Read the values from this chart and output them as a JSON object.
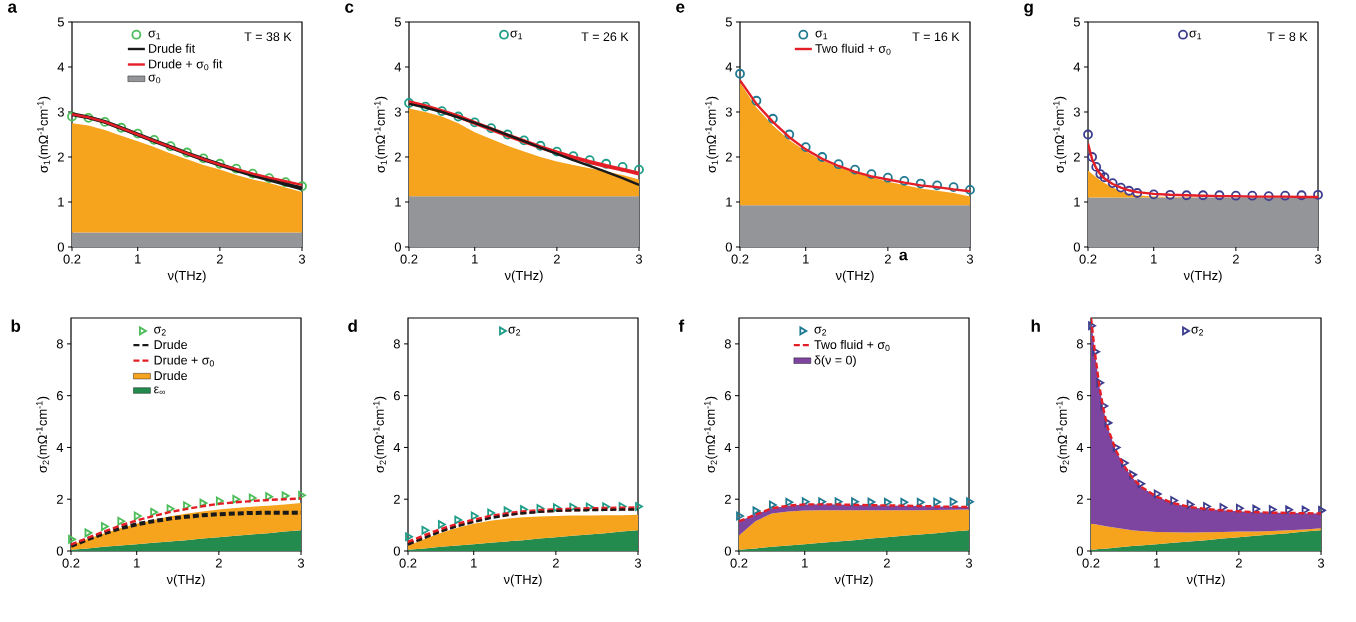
{
  "chart_data": [
    {
      "type": "line",
      "title": "a",
      "xlabel": "ν(THz)",
      "ylabel": "σ$_{1}$(mΩ$^{-1}$cm$^{-1}$)",
      "xlim": [
        0.2,
        3
      ],
      "ylim": [
        0,
        5
      ],
      "xticks": [
        0.2,
        1,
        2,
        3
      ],
      "yticks": [
        0,
        1,
        2,
        3,
        4,
        5
      ],
      "legend": "top",
      "stacked": true,
      "annotations": [
        "T = 38 K"
      ],
      "x": [
        0.2,
        0.4,
        0.6,
        0.8,
        1.0,
        1.2,
        1.4,
        1.6,
        1.8,
        2.0,
        2.2,
        2.4,
        2.6,
        2.8,
        3.0
      ],
      "series": [
        {
          "type": "scatter",
          "marker": "circle",
          "name": "σ$_{1}$",
          "color": "#4dbd5a",
          "values": [
            2.9,
            2.87,
            2.78,
            2.65,
            2.52,
            2.38,
            2.24,
            2.1,
            1.97,
            1.85,
            1.74,
            1.63,
            1.53,
            1.44,
            1.35
          ]
        },
        {
          "type": "line",
          "name": "Drude fit",
          "color": "#1a1a1a",
          "values": [
            2.95,
            2.88,
            2.78,
            2.64,
            2.5,
            2.36,
            2.22,
            2.08,
            1.95,
            1.83,
            1.71,
            1.6,
            1.5,
            1.4,
            1.3
          ]
        },
        {
          "type": "line",
          "name": "Drude + σ$_{0}$ fit",
          "color": "#e41e26",
          "values": [
            2.95,
            2.88,
            2.78,
            2.64,
            2.5,
            2.36,
            2.22,
            2.08,
            1.95,
            1.83,
            1.73,
            1.63,
            1.54,
            1.46,
            1.38
          ]
        },
        {
          "type": "area",
          "name": "σ$_{0}$",
          "color": "#939598",
          "values": [
            0.32,
            0.32,
            0.32,
            0.32,
            0.32,
            0.32,
            0.32,
            0.32,
            0.32,
            0.32,
            0.32,
            0.32,
            0.32,
            0.32,
            0.32
          ]
        },
        {
          "type": "area",
          "color": "#f6a31e",
          "values": [
            2.43,
            2.38,
            2.28,
            2.15,
            2.03,
            1.9,
            1.76,
            1.63,
            1.5,
            1.4,
            1.28,
            1.18,
            1.1,
            1.0,
            0.9
          ]
        }
      ]
    },
    {
      "type": "line",
      "title": "c",
      "xlabel": "ν(THz)",
      "ylabel": "σ$_{1}$(mΩ$^{-1}$cm$^{-1}$)",
      "xlim": [
        0.2,
        3
      ],
      "ylim": [
        0,
        5
      ],
      "xticks": [
        0.2,
        1,
        2,
        3
      ],
      "yticks": [
        0,
        1,
        2,
        3,
        4,
        5
      ],
      "legend": "top",
      "stacked": true,
      "annotations": [
        "T = 26 K"
      ],
      "x": [
        0.2,
        0.4,
        0.6,
        0.8,
        1.0,
        1.2,
        1.4,
        1.6,
        1.8,
        2.0,
        2.2,
        2.4,
        2.6,
        2.8,
        3.0
      ],
      "series": [
        {
          "type": "scatter",
          "marker": "circle",
          "name": "σ$_{1}$",
          "color": "#1e9e88",
          "values": [
            3.2,
            3.12,
            3.02,
            2.9,
            2.77,
            2.64,
            2.5,
            2.37,
            2.25,
            2.12,
            2.02,
            1.93,
            1.85,
            1.78,
            1.72
          ]
        },
        {
          "type": "line",
          "color": "#e41e26",
          "values": [
            3.22,
            3.13,
            3.02,
            2.9,
            2.76,
            2.62,
            2.48,
            2.35,
            2.22,
            2.1,
            1.99,
            1.89,
            1.8,
            1.72,
            1.63
          ]
        },
        {
          "type": "line",
          "color": "#1a1a1a",
          "values": [
            3.18,
            3.1,
            3.0,
            2.88,
            2.76,
            2.63,
            2.49,
            2.35,
            2.21,
            2.07,
            1.93,
            1.8,
            1.67,
            1.53,
            1.38
          ]
        },
        {
          "type": "area",
          "color": "#939598",
          "values": [
            1.13,
            1.13,
            1.13,
            1.13,
            1.13,
            1.13,
            1.13,
            1.13,
            1.13,
            1.13,
            1.13,
            1.13,
            1.13,
            1.13,
            1.13
          ]
        },
        {
          "type": "area",
          "color": "#f6a31e",
          "values": [
            1.95,
            1.87,
            1.77,
            1.62,
            1.42,
            1.27,
            1.12,
            0.99,
            0.87,
            0.77,
            0.69,
            0.62,
            0.55,
            0.47,
            0.37
          ]
        }
      ]
    },
    {
      "type": "line",
      "title": "e",
      "xlabel": "ν(THz)",
      "ylabel": "σ$_{1}$(mΩ$^{-1}$cm$^{-1}$)",
      "xlim": [
        0.2,
        3
      ],
      "ylim": [
        0,
        5
      ],
      "xticks": [
        0.2,
        1,
        2,
        3
      ],
      "yticks": [
        0,
        1,
        2,
        3,
        4,
        5
      ],
      "legend": "top",
      "stacked": true,
      "annotations": [
        "T = 16 K",
        "a"
      ],
      "x": [
        0.2,
        0.4,
        0.6,
        0.8,
        1.0,
        1.2,
        1.4,
        1.6,
        1.8,
        2.0,
        2.2,
        2.4,
        2.6,
        2.8,
        3.0
      ],
      "series": [
        {
          "type": "scatter",
          "marker": "circle",
          "name": "σ$_{1}$",
          "color": "#1f7a92",
          "values": [
            3.85,
            3.25,
            2.85,
            2.5,
            2.22,
            2.0,
            1.84,
            1.72,
            1.62,
            1.54,
            1.47,
            1.41,
            1.37,
            1.33,
            1.27
          ]
        },
        {
          "type": "line",
          "name": "Two fluid + σ$_{0}$",
          "color": "#e41e26",
          "values": [
            3.7,
            3.18,
            2.78,
            2.44,
            2.17,
            1.96,
            1.8,
            1.67,
            1.57,
            1.5,
            1.43,
            1.37,
            1.33,
            1.28,
            1.24
          ]
        },
        {
          "type": "area",
          "color": "#939598",
          "values": [
            0.93,
            0.93,
            0.93,
            0.93,
            0.93,
            0.93,
            0.93,
            0.93,
            0.93,
            0.93,
            0.93,
            0.93,
            0.93,
            0.93,
            0.93
          ]
        },
        {
          "type": "area",
          "color": "#f6a31e",
          "values": [
            2.72,
            2.17,
            1.77,
            1.45,
            1.2,
            0.99,
            0.85,
            0.72,
            0.62,
            0.52,
            0.45,
            0.37,
            0.32,
            0.27,
            0.19
          ]
        }
      ]
    },
    {
      "type": "line",
      "title": "g",
      "xlabel": "ν(THz)",
      "ylabel": "σ$_{1}$(mΩ$^{-1}$cm$^{-1}$)",
      "xlim": [
        0.2,
        3
      ],
      "ylim": [
        0,
        5
      ],
      "xticks": [
        0.2,
        1,
        2,
        3
      ],
      "yticks": [
        0,
        1,
        2,
        3,
        4,
        5
      ],
      "legend": "top",
      "stacked": true,
      "annotations": [
        "T = 8 K"
      ],
      "x": [
        0.2,
        0.25,
        0.3,
        0.35,
        0.4,
        0.5,
        0.6,
        0.7,
        0.8,
        1.0,
        1.2,
        1.4,
        1.6,
        1.8,
        2.0,
        2.2,
        2.4,
        2.6,
        2.8,
        3.0
      ],
      "series": [
        {
          "type": "scatter",
          "marker": "circle",
          "name": "σ$_{1}$",
          "color": "#3d3d8f",
          "values": [
            2.5,
            2.0,
            1.78,
            1.62,
            1.55,
            1.42,
            1.32,
            1.25,
            1.2,
            1.17,
            1.16,
            1.15,
            1.15,
            1.15,
            1.14,
            1.14,
            1.13,
            1.14,
            1.15,
            1.16
          ]
        },
        {
          "type": "line",
          "color": "#e41e26",
          "values": [
            2.3,
            1.95,
            1.75,
            1.62,
            1.52,
            1.4,
            1.32,
            1.26,
            1.22,
            1.18,
            1.16,
            1.15,
            1.14,
            1.13,
            1.13,
            1.12,
            1.12,
            1.12,
            1.11,
            1.11
          ]
        },
        {
          "type": "area",
          "color": "#939598",
          "values": [
            1.1,
            1.1,
            1.1,
            1.1,
            1.1,
            1.1,
            1.1,
            1.1,
            1.1,
            1.1,
            1.1,
            1.1,
            1.1,
            1.1,
            1.1,
            1.1,
            1.1,
            1.1,
            1.1,
            1.1
          ]
        },
        {
          "type": "area",
          "color": "#f6a31e",
          "values": [
            0.6,
            0.52,
            0.45,
            0.38,
            0.32,
            0.22,
            0.14,
            0.08,
            0.05,
            0.02,
            0.01,
            0.01,
            0,
            0,
            0,
            0,
            0,
            0,
            0,
            0
          ]
        }
      ]
    },
    {
      "type": "line",
      "title": "b",
      "xlabel": "ν(THz)",
      "ylabel": "σ$_{2}$(mΩ$^{-1}$cm$^{-1}$)",
      "xlim": [
        0.2,
        3
      ],
      "ylim": [
        0,
        9
      ],
      "xticks": [
        0.2,
        1,
        2,
        3
      ],
      "yticks": [
        0,
        2,
        4,
        6,
        8
      ],
      "legend": "top",
      "stacked": true,
      "x": [
        0.2,
        0.4,
        0.6,
        0.8,
        1.0,
        1.2,
        1.4,
        1.6,
        1.8,
        2.0,
        2.2,
        2.4,
        2.6,
        2.8,
        3.0
      ],
      "series": [
        {
          "type": "scatter",
          "marker": "triangle",
          "name": "σ$_{2}$",
          "color": "#4dbd5a",
          "values": [
            0.45,
            0.7,
            0.95,
            1.15,
            1.35,
            1.5,
            1.63,
            1.75,
            1.85,
            1.93,
            2.0,
            2.05,
            2.1,
            2.13,
            2.15
          ]
        },
        {
          "type": "line",
          "line_style": "dashed",
          "name": "Drude",
          "color": "#1a1a1a",
          "values": [
            0.2,
            0.45,
            0.68,
            0.88,
            1.03,
            1.15,
            1.25,
            1.32,
            1.38,
            1.42,
            1.45,
            1.47,
            1.48,
            1.48,
            1.48
          ]
        },
        {
          "type": "line",
          "line_style": "dashed",
          "name": "Drude + σ$_{0}$",
          "color": "#e41e26",
          "values": [
            0.25,
            0.5,
            0.75,
            0.98,
            1.18,
            1.35,
            1.5,
            1.62,
            1.73,
            1.82,
            1.88,
            1.93,
            1.97,
            2.0,
            2.03
          ]
        },
        {
          "type": "area",
          "name": "ε$_{∞}$",
          "color": "#238b4e",
          "values": [
            0.05,
            0.1,
            0.16,
            0.21,
            0.26,
            0.32,
            0.37,
            0.42,
            0.48,
            0.53,
            0.59,
            0.64,
            0.69,
            0.75,
            0.8
          ]
        },
        {
          "type": "area",
          "name": "Drude",
          "color": "#f6a31e",
          "values": [
            0.17,
            0.36,
            0.52,
            0.67,
            0.79,
            0.88,
            0.96,
            1.02,
            1.05,
            1.07,
            1.07,
            1.07,
            1.06,
            1.05,
            1.05
          ]
        }
      ]
    },
    {
      "type": "line",
      "title": "d",
      "xlabel": "ν(THz)",
      "ylabel": "σ$_{2}$(mΩ$^{-1}$cm$^{-1}$)",
      "xlim": [
        0.2,
        3
      ],
      "ylim": [
        0,
        9
      ],
      "xticks": [
        0.2,
        1,
        2,
        3
      ],
      "yticks": [
        0,
        2,
        4,
        6,
        8
      ],
      "legend": "top",
      "stacked": true,
      "x": [
        0.2,
        0.4,
        0.6,
        0.8,
        1.0,
        1.2,
        1.4,
        1.6,
        1.8,
        2.0,
        2.2,
        2.4,
        2.6,
        2.8,
        3.0
      ],
      "series": [
        {
          "type": "scatter",
          "marker": "triangle",
          "name": "σ$_{2}$",
          "color": "#1e9e88",
          "values": [
            0.55,
            0.8,
            1.02,
            1.2,
            1.35,
            1.47,
            1.55,
            1.6,
            1.64,
            1.67,
            1.69,
            1.7,
            1.71,
            1.72,
            1.72
          ]
        },
        {
          "type": "line",
          "line_style": "dashed",
          "color": "#e41e26",
          "values": [
            0.32,
            0.58,
            0.82,
            1.02,
            1.18,
            1.32,
            1.42,
            1.5,
            1.55,
            1.58,
            1.6,
            1.62,
            1.63,
            1.64,
            1.65
          ]
        },
        {
          "type": "line",
          "line_style": "dashed",
          "color": "#1a1a1a",
          "values": [
            0.25,
            0.5,
            0.75,
            0.96,
            1.12,
            1.27,
            1.38,
            1.46,
            1.51,
            1.55,
            1.57,
            1.58,
            1.59,
            1.6,
            1.6
          ]
        },
        {
          "type": "area",
          "color": "#238b4e",
          "values": [
            0.05,
            0.1,
            0.16,
            0.21,
            0.26,
            0.32,
            0.37,
            0.42,
            0.48,
            0.53,
            0.59,
            0.64,
            0.69,
            0.75,
            0.8
          ]
        },
        {
          "type": "area",
          "color": "#f6a31e",
          "values": [
            0.15,
            0.36,
            0.54,
            0.69,
            0.79,
            0.85,
            0.88,
            0.88,
            0.85,
            0.82,
            0.78,
            0.73,
            0.69,
            0.63,
            0.6
          ]
        }
      ]
    },
    {
      "type": "line",
      "title": "f",
      "xlabel": "ν(THz)",
      "ylabel": "σ$_{2}$(mΩ$^{-1}$cm$^{-1}$)",
      "xlim": [
        0.2,
        3
      ],
      "ylim": [
        0,
        9
      ],
      "xticks": [
        0.2,
        1,
        2,
        3
      ],
      "yticks": [
        0,
        2,
        4,
        6,
        8
      ],
      "legend": "top",
      "stacked": true,
      "x": [
        0.2,
        0.4,
        0.6,
        0.8,
        1.0,
        1.2,
        1.4,
        1.6,
        1.8,
        2.0,
        2.2,
        2.4,
        2.6,
        2.8,
        3.0
      ],
      "series": [
        {
          "type": "scatter",
          "marker": "triangle",
          "name": "σ$_{2}$",
          "color": "#1f7a92",
          "values": [
            1.35,
            1.55,
            1.78,
            1.88,
            1.9,
            1.9,
            1.9,
            1.9,
            1.89,
            1.88,
            1.88,
            1.88,
            1.89,
            1.9,
            1.9
          ]
        },
        {
          "type": "line",
          "line_style": "dashed",
          "name": "Two fluid + σ$_{0}$",
          "color": "#e41e26",
          "values": [
            1.15,
            1.4,
            1.65,
            1.75,
            1.8,
            1.8,
            1.8,
            1.78,
            1.77,
            1.76,
            1.75,
            1.74,
            1.72,
            1.71,
            1.7
          ]
        },
        {
          "type": "area",
          "color": "#238b4e",
          "values": [
            0.05,
            0.1,
            0.16,
            0.21,
            0.26,
            0.32,
            0.37,
            0.42,
            0.48,
            0.53,
            0.59,
            0.64,
            0.69,
            0.75,
            0.8
          ]
        },
        {
          "type": "area",
          "color": "#f6a31e",
          "values": [
            0.55,
            1.05,
            1.29,
            1.32,
            1.3,
            1.25,
            1.2,
            1.15,
            1.09,
            1.04,
            0.98,
            0.93,
            0.89,
            0.84,
            0.8
          ]
        },
        {
          "type": "area",
          "name": "δ(ν = 0)",
          "color": "#7d45a0",
          "values": [
            0.55,
            0.26,
            0.2,
            0.22,
            0.24,
            0.24,
            0.23,
            0.21,
            0.2,
            0.19,
            0.18,
            0.17,
            0.14,
            0.12,
            0.1
          ]
        }
      ]
    },
    {
      "type": "line",
      "title": "h",
      "xlabel": "ν(THz)",
      "ylabel": "σ$_{2}$(mΩ$^{-1}$cm$^{-1}$)",
      "xlim": [
        0.2,
        3
      ],
      "ylim": [
        0,
        9
      ],
      "xticks": [
        0.2,
        1,
        2,
        3
      ],
      "yticks": [
        0,
        2,
        4,
        6,
        8
      ],
      "legend": "top",
      "stacked": true,
      "x": [
        0.2,
        0.25,
        0.3,
        0.35,
        0.4,
        0.5,
        0.6,
        0.7,
        0.8,
        1.0,
        1.2,
        1.4,
        1.6,
        1.8,
        2.0,
        2.2,
        2.4,
        2.6,
        2.8,
        3.0
      ],
      "series": [
        {
          "type": "scatter",
          "marker": "triangle",
          "name": "σ$_{2}$",
          "color": "#3d3d8f",
          "values": [
            8.7,
            7.7,
            6.5,
            5.6,
            4.95,
            4.0,
            3.4,
            2.95,
            2.6,
            2.2,
            1.95,
            1.8,
            1.72,
            1.68,
            1.65,
            1.62,
            1.6,
            1.59,
            1.58,
            1.57
          ]
        },
        {
          "type": "line",
          "line_style": "dashed",
          "color": "#e41e26",
          "values": [
            9.0,
            7.6,
            6.4,
            5.5,
            4.8,
            3.9,
            3.3,
            2.85,
            2.5,
            2.1,
            1.85,
            1.7,
            1.62,
            1.57,
            1.53,
            1.5,
            1.48,
            1.47,
            1.46,
            1.45
          ]
        },
        {
          "type": "area",
          "color": "#238b4e",
          "values": [
            0.05,
            0.06,
            0.08,
            0.09,
            0.1,
            0.13,
            0.16,
            0.19,
            0.21,
            0.26,
            0.32,
            0.37,
            0.42,
            0.48,
            0.53,
            0.59,
            0.64,
            0.69,
            0.75,
            0.8
          ]
        },
        {
          "type": "area",
          "color": "#f6a31e",
          "values": [
            1.0,
            0.97,
            0.92,
            0.89,
            0.85,
            0.77,
            0.69,
            0.61,
            0.56,
            0.47,
            0.4,
            0.34,
            0.3,
            0.25,
            0.22,
            0.16,
            0.13,
            0.11,
            0.08,
            0.08
          ]
        },
        {
          "type": "area",
          "color": "#7d45a0",
          "values": [
            7.95,
            6.57,
            5.4,
            4.52,
            3.85,
            3.0,
            2.45,
            2.05,
            1.73,
            1.37,
            1.13,
            0.98,
            0.9,
            0.84,
            0.79,
            0.75,
            0.71,
            0.68,
            0.63,
            0.57
          ]
        }
      ]
    }
  ]
}
